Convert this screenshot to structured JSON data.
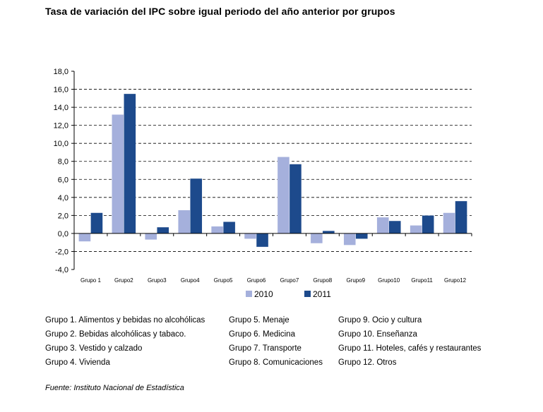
{
  "title": "Tasa de variación del IPC sobre igual periodo del año anterior por grupos",
  "chart_data": {
    "type": "bar",
    "title": "Tasa de variación del IPC sobre igual periodo del año anterior por grupos",
    "xlabel": "",
    "ylabel": "",
    "ylim": [
      -4.0,
      18.0
    ],
    "ytick_values": [
      -4.0,
      -2.0,
      0.0,
      2.0,
      4.0,
      6.0,
      8.0,
      10.0,
      12.0,
      14.0,
      16.0,
      18.0
    ],
    "ytick_labels": [
      "-4,0",
      "-2,0",
      "0,0",
      "2,0",
      "4,0",
      "6,0",
      "8,0",
      "10,0",
      "12,0",
      "14,0",
      "16,0",
      "18,0"
    ],
    "grid": true,
    "legend_position": "bottom",
    "categories": [
      "Grupo 1",
      "Grupo2",
      "Grupo3",
      "Grupo4",
      "Grupo5",
      "Grupo6",
      "Grupo7",
      "Grupo8",
      "Grupo9",
      "Grupo10",
      "Grupo11",
      "Grupo12"
    ],
    "series": [
      {
        "name": "2010",
        "color": "#a5b0dc",
        "values": [
          -0.9,
          13.2,
          -0.7,
          2.6,
          0.8,
          -0.6,
          8.5,
          -1.1,
          -1.3,
          1.8,
          0.9,
          2.3
        ]
      },
      {
        "name": "2011",
        "color": "#1d4a8c",
        "values": [
          2.3,
          15.5,
          0.7,
          6.1,
          1.3,
          -1.5,
          7.7,
          0.3,
          -0.6,
          1.4,
          2.0,
          3.6
        ]
      }
    ]
  },
  "groups_legend": [
    [
      "Grupo 1. Alimentos y bebidas no alcohólicas",
      "Grupo 2. Bebidas alcohólicas y  tabaco.",
      "Grupo 3. Vestido y calzado",
      "Grupo 4. Vivienda"
    ],
    [
      "Grupo 5. Menaje",
      "Grupo 6. Medicina",
      "Grupo 7. Transporte",
      "Grupo 8. Comunicaciones"
    ],
    [
      "Grupo 9. Ocio y cultura",
      "Grupo 10. Enseñanza",
      "Grupo 11. Hoteles, cafés y restaurantes",
      "Grupo 12. Otros"
    ]
  ],
  "source": "Fuente: Instituto Nacional de Estadística"
}
